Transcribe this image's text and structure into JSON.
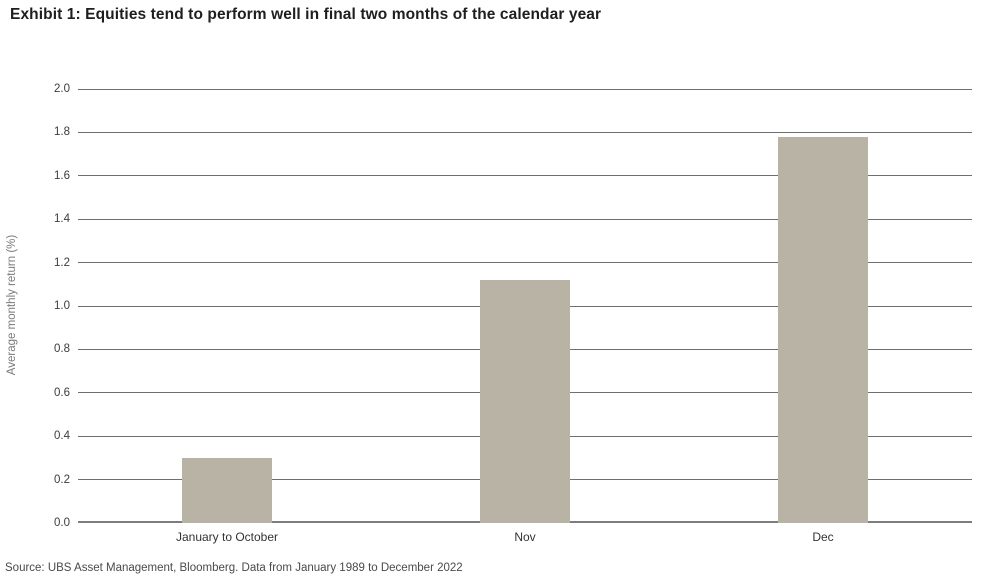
{
  "page": {
    "title": "Exhibit 1: Equities tend to perform well in final two months of the calendar year",
    "source": "Source: UBS Asset Management, Bloomberg. Data from January 1989 to December 2022"
  },
  "chart_data": {
    "type": "bar",
    "title": "Exhibit 1: Equities tend to perform well in final two months of the calendar year",
    "categories": [
      "January to October",
      "Nov",
      "Dec"
    ],
    "values": [
      0.3,
      1.12,
      1.78
    ],
    "xlabel": "",
    "ylabel": "Average monthly return (%)",
    "ylim": [
      0.0,
      2.0
    ],
    "ytick_step": 0.2,
    "yticks": [
      "0.0",
      "0.2",
      "0.4",
      "0.6",
      "0.8",
      "1.0",
      "1.2",
      "1.4",
      "1.6",
      "1.8",
      "2.0"
    ],
    "grid": true,
    "legend": false,
    "legend_position": "none",
    "bar_color": "#b8b3a4",
    "gridline_color": "#6f6f6f",
    "baseline_color": "#7d7d7d",
    "source": "Source: UBS Asset Management, Bloomberg. Data from January 1989 to December 2022"
  }
}
